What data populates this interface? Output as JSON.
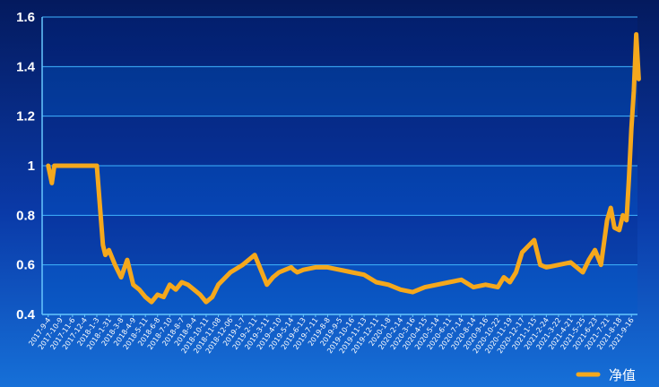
{
  "chart_data": {
    "type": "line",
    "ylim": [
      0.4,
      1.6
    ],
    "y_ticks": [
      "0.4",
      "0.6",
      "0.8",
      "1",
      "1.2",
      "1.4",
      "1.6"
    ],
    "x_tick_labels": [
      "2017-9-4",
      "2017-10-9",
      "2017-11-6",
      "2017-12-4",
      "2018-1-3",
      "2018-1-31",
      "2018-3-8",
      "2018-4-9",
      "2018-5-11",
      "2018-6-8",
      "2018-7-10",
      "2018-8-7",
      "2018-9-4",
      "2018-10-11",
      "2018-11-08",
      "2018-12-06",
      "2019-1-7",
      "2019-2-11",
      "2019-3-11",
      "2019-4-10",
      "2019-5-14",
      "2019-6-13",
      "2019-7-11",
      "2019-8-8",
      "2019-9-5",
      "2019-10-16",
      "2019-11-13",
      "2019-12-11",
      "2020-1-8",
      "2020-2-14",
      "2020-3-16",
      "2020-4-15",
      "2020-5-14",
      "2020-6-11",
      "2020-7-14",
      "2020-8-14",
      "2020-9-16",
      "2020-10-22",
      "2020-11-19",
      "2020-12-17",
      "2021-1-15",
      "2021-2-24",
      "2021-3-22",
      "2021-4-21",
      "2021-5-25",
      "2021-6-23",
      "2021-7-21",
      "2021-8-18",
      "2021-9-16"
    ],
    "grid": true,
    "legend_position": "bottom-right",
    "series": [
      {
        "name": "净值",
        "color": "#f5a81c",
        "x": [
          0,
          0.3,
          0.5,
          0.8,
          1,
          2,
          3,
          4,
          4.5,
          4.7,
          5,
          5.5,
          6,
          6.5,
          7,
          7.5,
          8,
          8.5,
          9,
          9.5,
          10,
          10.5,
          11,
          11.5,
          12,
          12.5,
          13,
          13.5,
          14,
          15,
          16,
          17,
          18,
          18.5,
          19,
          19.5,
          20,
          20.2,
          20.5,
          21,
          22,
          23,
          24,
          25,
          26,
          27,
          28,
          29,
          30,
          30.5,
          31,
          32,
          33,
          34,
          35,
          36,
          37,
          37.5,
          38,
          38.5,
          39,
          40,
          40.5,
          41,
          42,
          43,
          44,
          44.5,
          45,
          45.5,
          46,
          46.3,
          46.6,
          47,
          47.3,
          47.6,
          47.8,
          48,
          48.2,
          48.4,
          48.6
        ],
        "values": [
          1.0,
          0.93,
          1.0,
          1.0,
          1.0,
          1.0,
          1.0,
          1.0,
          0.68,
          0.64,
          0.66,
          0.6,
          0.55,
          0.62,
          0.52,
          0.5,
          0.47,
          0.45,
          0.48,
          0.47,
          0.52,
          0.5,
          0.53,
          0.52,
          0.5,
          0.48,
          0.45,
          0.47,
          0.52,
          0.57,
          0.6,
          0.64,
          0.52,
          0.55,
          0.57,
          0.58,
          0.59,
          0.58,
          0.57,
          0.58,
          0.59,
          0.59,
          0.58,
          0.57,
          0.56,
          0.53,
          0.52,
          0.5,
          0.49,
          0.5,
          0.51,
          0.52,
          0.53,
          0.54,
          0.51,
          0.52,
          0.51,
          0.55,
          0.53,
          0.57,
          0.65,
          0.7,
          0.6,
          0.59,
          0.6,
          0.61,
          0.57,
          0.62,
          0.66,
          0.6,
          0.78,
          0.83,
          0.75,
          0.74,
          0.8,
          0.78,
          0.95,
          1.15,
          1.3,
          1.53,
          1.35
        ]
      }
    ]
  }
}
